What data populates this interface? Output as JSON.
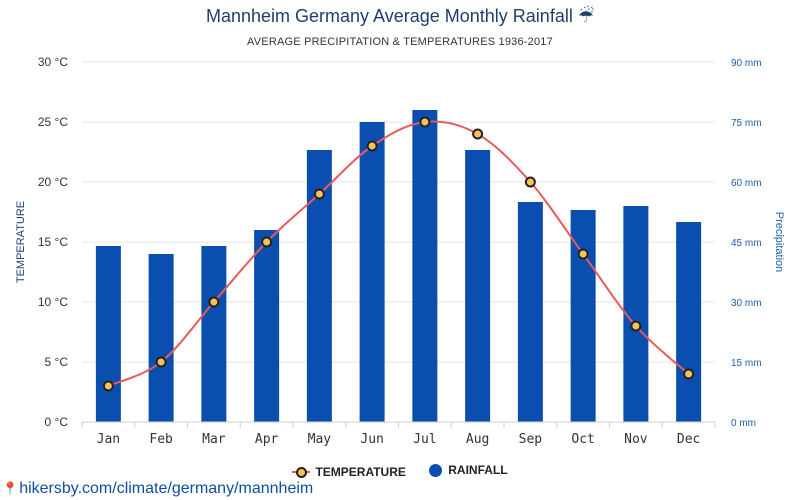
{
  "header": {
    "title": "Mannheim Germany Average Monthly Rainfall",
    "title_icon": "☔",
    "subtitle": "AVERAGE PRECIPITATION & TEMPERATURES 1936-2017"
  },
  "footer": {
    "icon": "map-pin-icon",
    "link_text": "hikersby.com/climate/germany/mannheim"
  },
  "legend": {
    "temperature": "TEMPERATURE",
    "rainfall": "RAINFALL"
  },
  "colors": {
    "bars": "#0a4fb0",
    "line": "#e85a5a",
    "marker_fill": "#f5c25b",
    "marker_stroke": "#222222",
    "left_axis_text": "#333333",
    "right_axis_text": "#1f5fa8"
  },
  "chart_data": {
    "type": "bar",
    "categories": [
      "Jan",
      "Feb",
      "Mar",
      "Apr",
      "May",
      "Jun",
      "Jul",
      "Aug",
      "Sep",
      "Oct",
      "Nov",
      "Dec"
    ],
    "series": [
      {
        "name": "RAINFALL",
        "type": "bar",
        "axis": "right",
        "values": [
          44,
          42,
          44,
          48,
          68,
          75,
          78,
          68,
          55,
          53,
          54,
          50
        ]
      },
      {
        "name": "TEMPERATURE",
        "type": "line",
        "axis": "left",
        "values": [
          3,
          5,
          10,
          15,
          19,
          23,
          25,
          24,
          20,
          14,
          8,
          4
        ]
      }
    ],
    "ylabel": "TEMPERATURE",
    "y2label": "Precipitation",
    "ylim": [
      0,
      30
    ],
    "y2lim": [
      0,
      90
    ],
    "yticks": [
      "0 °C",
      "5 °C",
      "10 °C",
      "15 °C",
      "20 °C",
      "25 °C",
      "30 °C"
    ],
    "y2ticks": [
      "0 mm",
      "15 mm",
      "30 mm",
      "45 mm",
      "60 mm",
      "75 mm",
      "90 mm"
    ],
    "grid": true,
    "legend_position": "bottom"
  }
}
